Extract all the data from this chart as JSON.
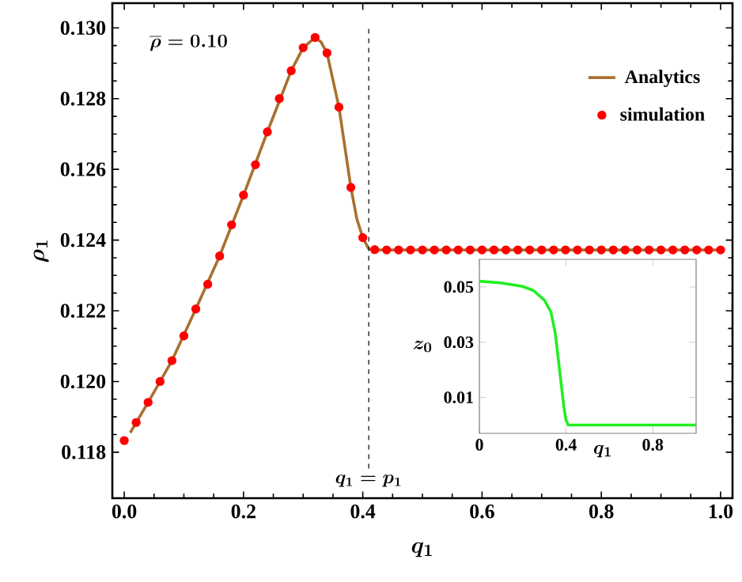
{
  "chart_data": [
    {
      "type": "line",
      "xlabel": "q_1",
      "ylabel": "\\rho_1",
      "annotations": [
        "\\overline{\\rho}=0.10"
      ],
      "xlim": [
        -0.02,
        1.02
      ],
      "ylim": [
        0.1167,
        0.1307
      ],
      "xticks": [
        {
          "value": 0,
          "label": "0.0"
        },
        0.2,
        0.4,
        0.6,
        0.8,
        {
          "value": 1,
          "label": "1.0"
        }
      ],
      "yticks": [
        0.118,
        {
          "value": 0.12,
          "label": "0.120"
        },
        0.122,
        0.124,
        0.126,
        0.128,
        {
          "value": 0.13,
          "label": "0.130"
        }
      ],
      "legend": "top right",
      "ref_lines": [
        {
          "axis": "x",
          "value": 0.41,
          "label": "q_1=p_1",
          "line_style": "dashed",
          "color": "#000000"
        }
      ],
      "series": [
        {
          "name": "Analytics",
          "type": "line",
          "color": "#a8702f",
          "x": [
            0.01,
            0.04,
            0.08,
            0.12,
            0.16,
            0.2,
            0.24,
            0.28,
            0.3,
            0.32,
            0.33,
            0.34,
            0.36,
            0.38,
            0.39,
            0.4,
            0.41,
            0.42,
            1.0
          ],
          "values": [
            0.11855,
            0.11941,
            0.12059,
            0.12205,
            0.12355,
            0.12527,
            0.12706,
            0.12879,
            0.12944,
            0.12973,
            0.1296,
            0.12929,
            0.12776,
            0.12549,
            0.1246,
            0.12407,
            0.12375,
            0.12372,
            0.12372
          ]
        },
        {
          "name": "simulation",
          "type": "scatter",
          "marker": "circle",
          "color": "#ff0000",
          "x": [
            0,
            0.02,
            0.04,
            0.06,
            0.08,
            0.1,
            0.12,
            0.14,
            0.16,
            0.18,
            0.2,
            0.22,
            0.24,
            0.26,
            0.28,
            0.3,
            0.32,
            0.34,
            0.36,
            0.38,
            0.4,
            0.42,
            0.44,
            0.46,
            0.48,
            0.5,
            0.52,
            0.54,
            0.56,
            0.58,
            0.6,
            0.62,
            0.64,
            0.66,
            0.68,
            0.7,
            0.72,
            0.74,
            0.76,
            0.78,
            0.8,
            0.82,
            0.84,
            0.86,
            0.88,
            0.9,
            0.92,
            0.94,
            0.96,
            0.98,
            1.0
          ],
          "values": [
            0.11833,
            0.11884,
            0.11941,
            0.12,
            0.12059,
            0.12129,
            0.12205,
            0.12275,
            0.12355,
            0.12443,
            0.12527,
            0.12613,
            0.12706,
            0.128,
            0.12879,
            0.12944,
            0.12973,
            0.12929,
            0.12776,
            0.12549,
            0.12407,
            0.12373,
            0.12372,
            0.12372,
            0.12372,
            0.12372,
            0.12372,
            0.12372,
            0.12372,
            0.12372,
            0.12372,
            0.12372,
            0.12372,
            0.12372,
            0.12372,
            0.12372,
            0.12372,
            0.12372,
            0.12372,
            0.12372,
            0.12372,
            0.12372,
            0.12372,
            0.12372,
            0.12372,
            0.12372,
            0.12372,
            0.12372,
            0.12372,
            0.12372,
            0.12372
          ]
        }
      ]
    },
    {
      "type": "line",
      "xlabel": "q_1",
      "ylabel": "z_0",
      "xlim": [
        0,
        1
      ],
      "ylim": [
        -0.003,
        0.06
      ],
      "xticks": [
        0,
        0.4,
        0.8
      ],
      "yticks": [
        0.01,
        0.03,
        0.05
      ],
      "series": [
        {
          "color": "#22ee22",
          "x": [
            0,
            0.1,
            0.2,
            0.25,
            0.3,
            0.33,
            0.35,
            0.37,
            0.39,
            0.4,
            0.41,
            1.0
          ],
          "values": [
            0.0521,
            0.0515,
            0.0502,
            0.0487,
            0.0452,
            0.041,
            0.0333,
            0.0199,
            0.0065,
            0.0017,
            0.0,
            0.0
          ]
        }
      ]
    }
  ]
}
